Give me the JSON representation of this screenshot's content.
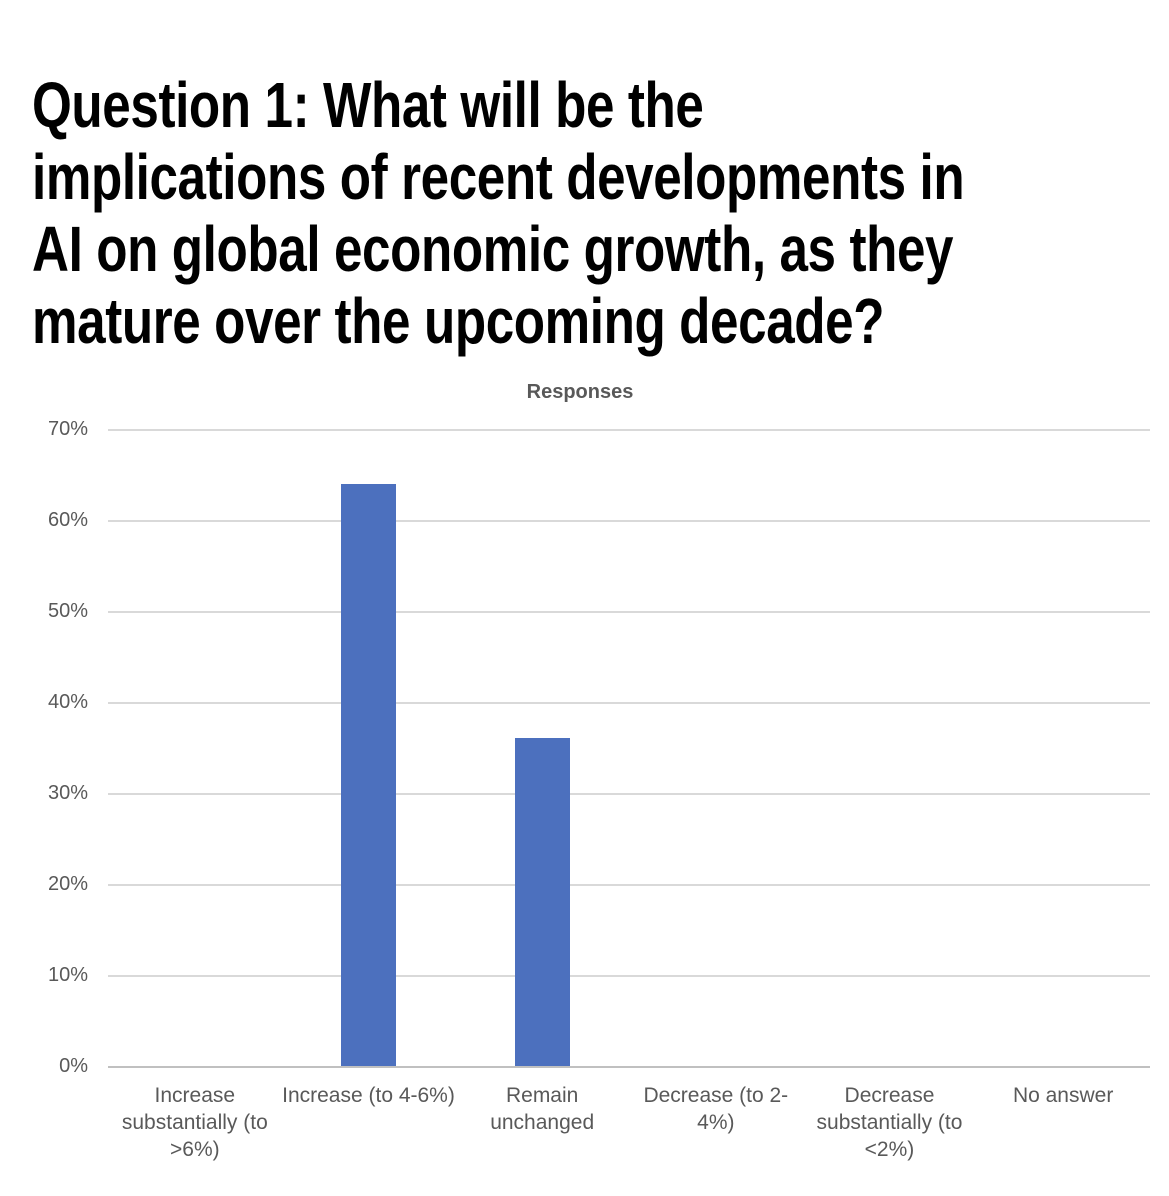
{
  "heading": {
    "lines": [
      "Question 1: What will be the",
      "implications of recent developments in",
      "AI on global economic growth, as they",
      "mature over the upcoming decade?"
    ]
  },
  "chart_data": {
    "type": "bar",
    "title": "Responses",
    "categories": [
      "Increase substantially (to >6%)",
      "Increase (to 4-6%)",
      "Remain unchanged",
      "Decrease (to 2-4%)",
      "Decrease substantially (to <2%)",
      "No answer"
    ],
    "category_lines": [
      "Increase\nsubstantially (to\n>6%)",
      "Increase (to 4-6%)",
      "Remain unchanged",
      "Decrease (to 2-4%)",
      "Decrease\nsubstantially (to\n<2%)",
      "No answer"
    ],
    "values": [
      0,
      64,
      36,
      0,
      0,
      0
    ],
    "unit": "percent",
    "xlabel": "",
    "ylabel": "",
    "ylim": [
      0,
      70
    ],
    "yticks": [
      0,
      10,
      20,
      30,
      40,
      50,
      60,
      70
    ],
    "ytick_labels": [
      "0%",
      "10%",
      "20%",
      "30%",
      "40%",
      "50%",
      "60%",
      "70%"
    ],
    "grid": true,
    "legend": "none",
    "colors": {
      "bar": "#4C70BE",
      "gridline": "#D9D9D9",
      "axis_line": "#C0C0C0",
      "axis_text": "#595959",
      "title_text": "#595959",
      "heading_text": "#000000",
      "background": "#FFFFFF"
    }
  }
}
